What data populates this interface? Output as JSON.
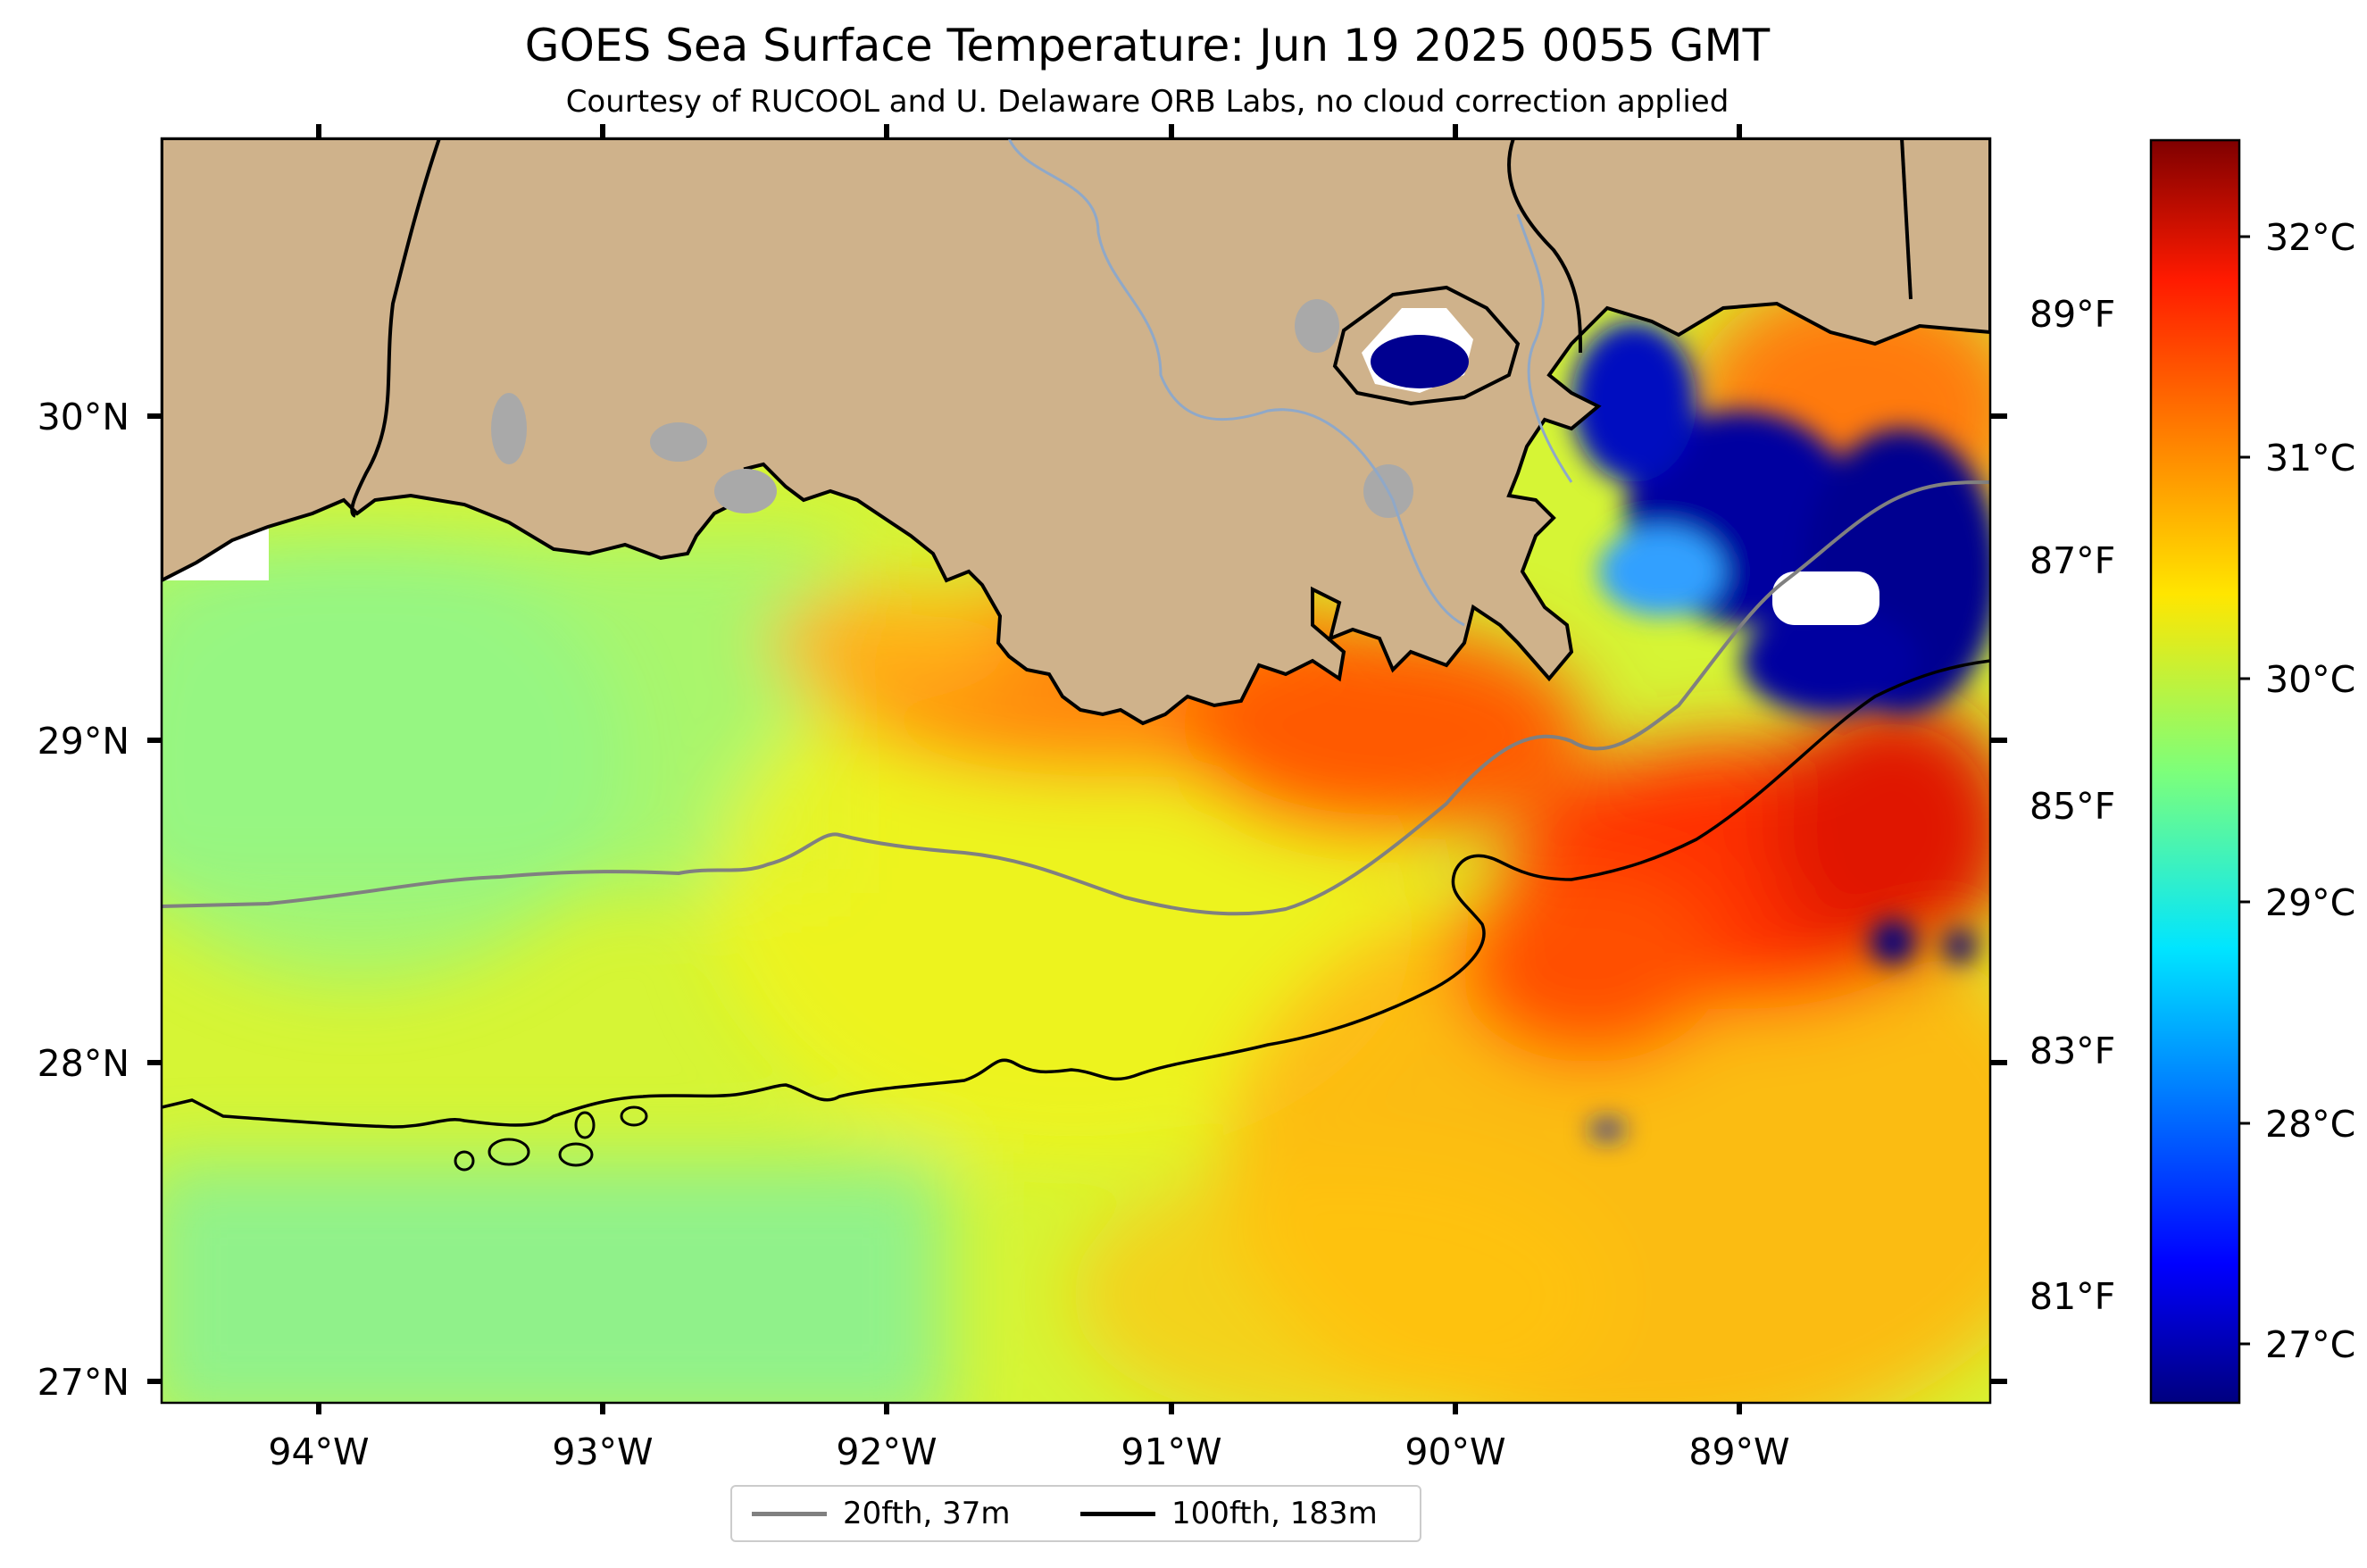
{
  "title": "GOES Sea Surface Temperature: Jun 19 2025 0055 GMT",
  "subtitle": "Courtesy of RUCOOL and U. Delaware ORB Labs, no cloud correction applied",
  "map": {
    "lon_ticks": [
      "94°W",
      "93°W",
      "92°W",
      "91°W",
      "90°W",
      "89°W"
    ],
    "lat_ticks": [
      "30°N",
      "29°N",
      "28°N",
      "27°N"
    ],
    "land_color": "#cfb28b",
    "cloud_color": "#ffffff",
    "lake_color": "#a9a9a9"
  },
  "colorbar": {
    "celsius_ticks": [
      "32°C",
      "31°C",
      "30°C",
      "29°C",
      "28°C",
      "27°C"
    ],
    "fahrenheit_ticks": [
      "89°F",
      "87°F",
      "85°F",
      "83°F",
      "81°F"
    ],
    "colormap": "jet"
  },
  "legend": {
    "items": [
      {
        "label": "20fth, 37m",
        "color": "#808080"
      },
      {
        "label": "100fth, 183m",
        "color": "#000000"
      }
    ]
  }
}
